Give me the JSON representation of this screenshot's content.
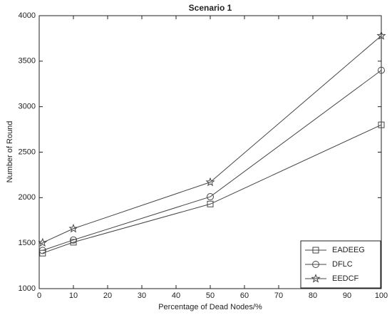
{
  "chart_data": {
    "type": "line",
    "title": "Scenario 1",
    "x_label": "Percentage of Dead Nodes/%",
    "y_label": "Number of Round",
    "x": [
      1,
      10,
      50,
      100
    ],
    "series": [
      {
        "name": "EADEEG",
        "color": "#444444",
        "marker": "square",
        "values": [
          1390,
          1510,
          1930,
          2800
        ]
      },
      {
        "name": "DFLC",
        "color": "#444444",
        "marker": "circle",
        "values": [
          1420,
          1535,
          2010,
          3400
        ]
      },
      {
        "name": "EEDCF",
        "color": "#444444",
        "marker": "star",
        "values": [
          1505,
          1660,
          2170,
          3780
        ]
      }
    ],
    "xlim": [
      0,
      100
    ],
    "xticks": [
      0,
      10,
      20,
      30,
      40,
      50,
      60,
      70,
      80,
      90,
      100
    ],
    "ylim": [
      1000,
      4000
    ],
    "yticks": [
      1000,
      1500,
      2000,
      2500,
      3000,
      3500,
      4000
    ],
    "grid": false,
    "legend": "lower right"
  }
}
